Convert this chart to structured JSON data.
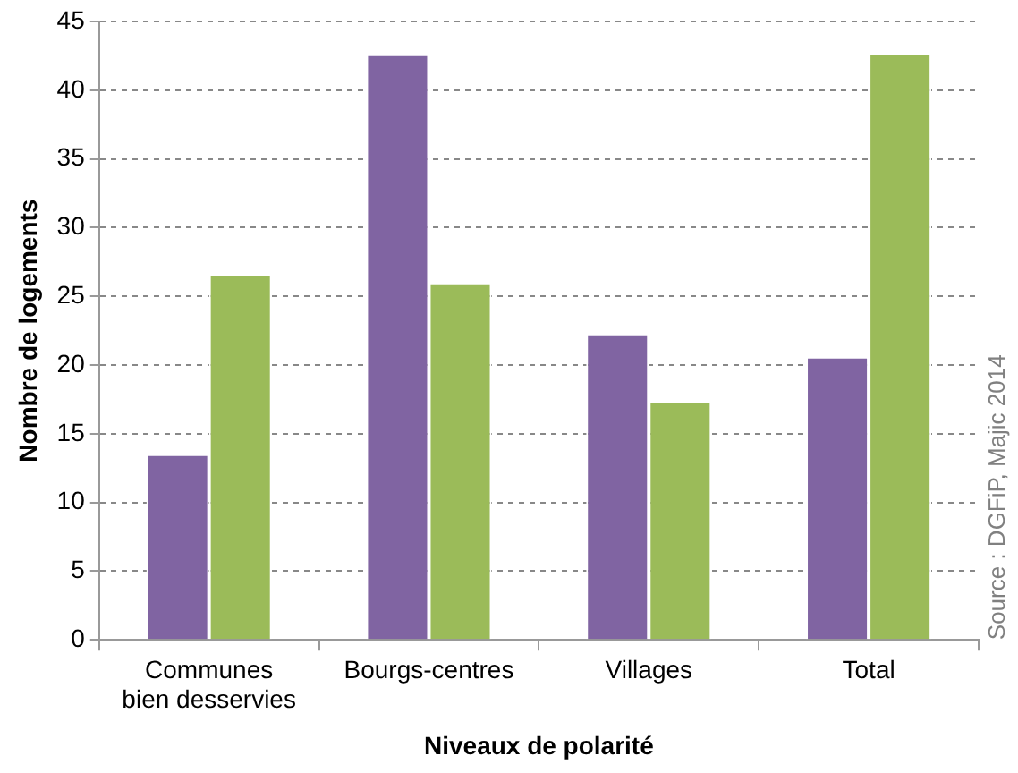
{
  "chart_data": {
    "type": "bar",
    "xlabel": "Niveaux de polarité",
    "ylabel": "Nombre de logements",
    "categories": [
      "Communes bien desservies",
      "Bourgs-centres",
      "Villages",
      "Total"
    ],
    "series": [
      {
        "color": "#8064a2",
        "values": [
          13.5,
          42.6,
          22.3,
          20.6
        ]
      },
      {
        "color": "#9bbb59",
        "values": [
          26.6,
          26.0,
          17.4,
          42.7
        ]
      }
    ],
    "ylim": [
      0,
      45
    ],
    "yticks": [
      0,
      5,
      10,
      15,
      20,
      25,
      30,
      35,
      40,
      45
    ],
    "grid": "y",
    "legend": false,
    "annotations": [
      "Source : DGFiP, Majic 2014"
    ]
  }
}
